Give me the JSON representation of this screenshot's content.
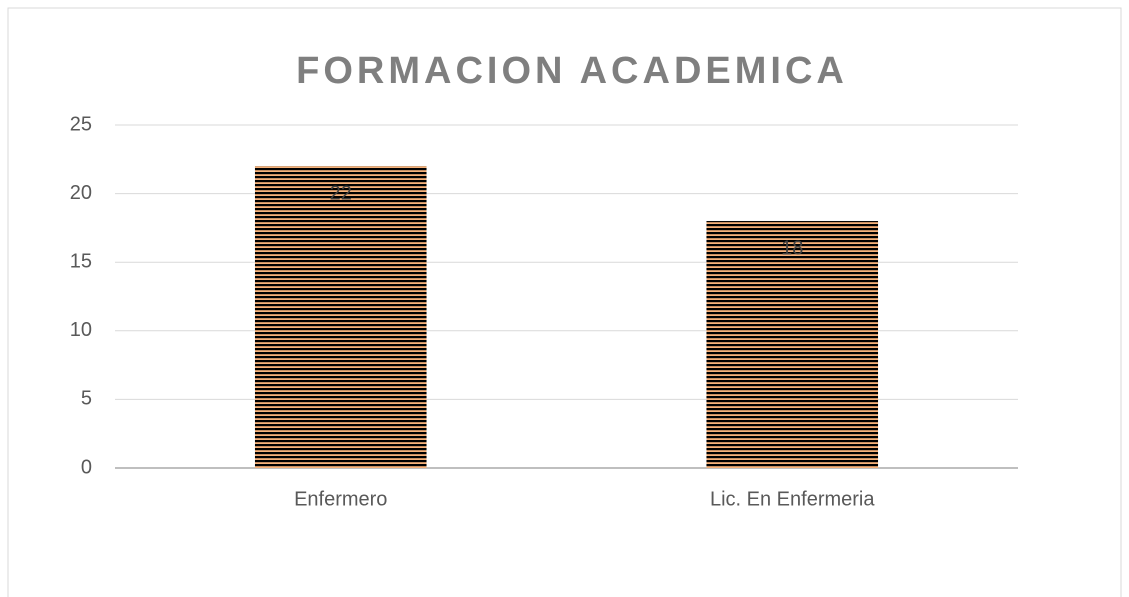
{
  "chart_data": {
    "type": "bar",
    "title": "FORMACION ACADEMICA",
    "categories": [
      "Enfermero",
      "Lic. En Enfermeria"
    ],
    "values": [
      22,
      18
    ],
    "color": "#f0883a",
    "ylim": [
      0,
      25
    ],
    "yticks": [
      0,
      5,
      10,
      15,
      20,
      25
    ],
    "grid": true
  }
}
